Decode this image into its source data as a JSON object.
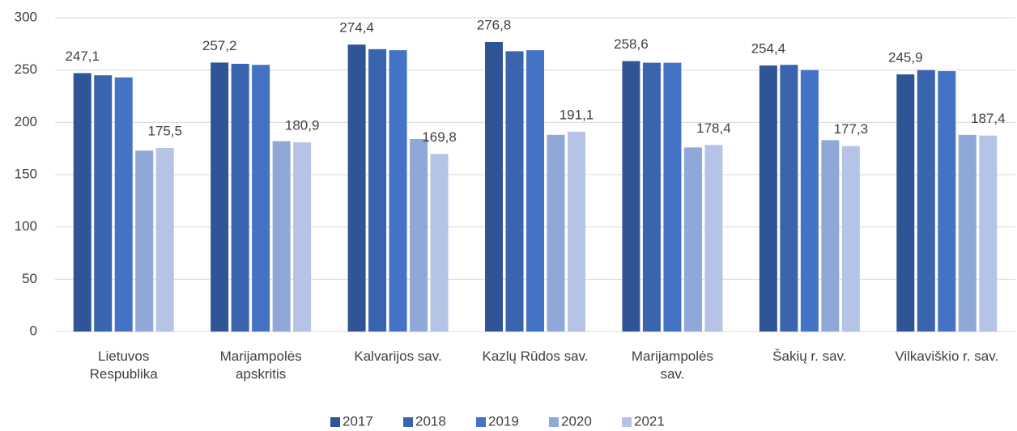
{
  "chart_data": {
    "type": "bar",
    "categories": [
      "Lietuvos\nRespublika",
      "Marijampolės\napskritis",
      "Kalvarijos sav.",
      "Kazlų Rūdos sav.",
      "Marijampolės\nsav.",
      "Šakių r. sav.",
      "Vilkaviškio r. sav."
    ],
    "series": [
      {
        "name": "2017",
        "color": "#2f5597",
        "values": [
          247.1,
          257.2,
          274.4,
          276.8,
          258.6,
          254.4,
          245.9
        ],
        "value_labels": [
          "247,1",
          "257,2",
          "274,4",
          "276,8",
          "258,6",
          "254,4",
          "245,9"
        ]
      },
      {
        "name": "2018",
        "color": "#3a64ad",
        "values": [
          245,
          256,
          270,
          268,
          257,
          255,
          250
        ]
      },
      {
        "name": "2019",
        "color": "#4472c4",
        "values": [
          243,
          255,
          269,
          269,
          257,
          250,
          249
        ]
      },
      {
        "name": "2020",
        "color": "#8fa8d8",
        "values": [
          173,
          182,
          184,
          188,
          176,
          183,
          188
        ]
      },
      {
        "name": "2021",
        "color": "#b4c3e6",
        "values": [
          175.5,
          180.9,
          169.8,
          191.1,
          178.4,
          177.3,
          187.4
        ],
        "value_labels": [
          "175,5",
          "180,9",
          "169,8",
          "191,1",
          "178,4",
          "177,3",
          "187,4"
        ]
      }
    ],
    "ylim": [
      0,
      300
    ],
    "yticks": [
      0,
      50,
      100,
      150,
      200,
      250,
      300
    ],
    "grid": true,
    "legend": "bottom"
  }
}
